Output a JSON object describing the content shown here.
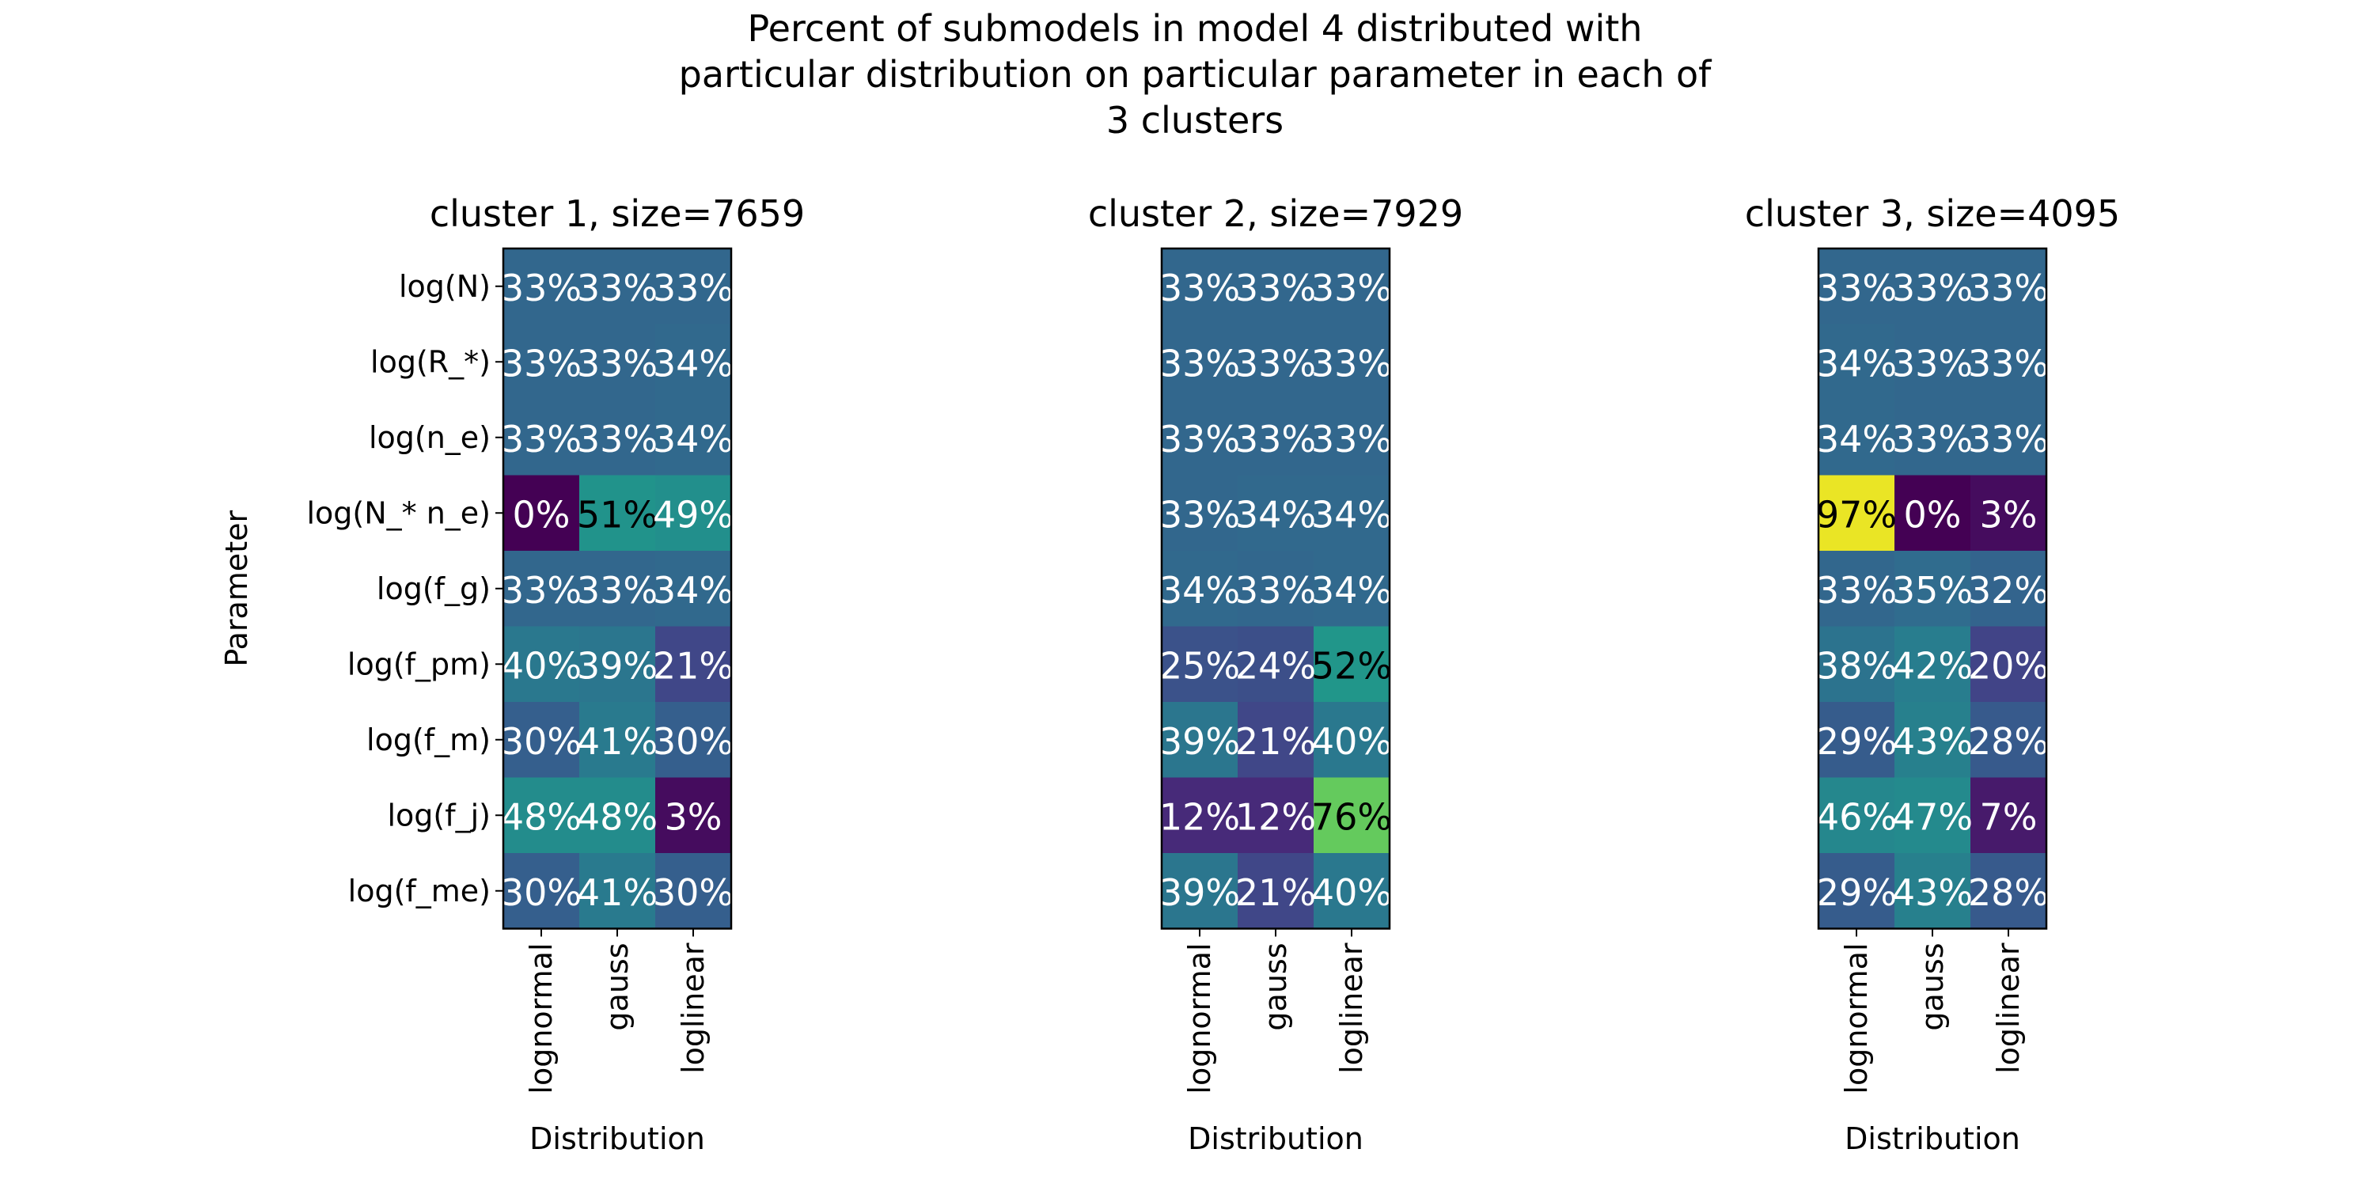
{
  "chart_data": {
    "type": "heatmap",
    "title_lines": [
      "Percent of submodels in model 4 distributed with",
      "particular distribution on particular parameter in each of",
      "3 clusters"
    ],
    "ylabel": "Parameter",
    "xlabel": "Distribution",
    "colormap": "viridis",
    "vmin": 0,
    "vmax": 100,
    "parameters": [
      "log(N)",
      "log(R_*)",
      "log(n_e)",
      "log(N_* n_e)",
      "log(f_g)",
      "log(f_pm)",
      "log(f_m)",
      "log(f_j)",
      "log(f_me)"
    ],
    "distributions": [
      "lognormal",
      "gauss",
      "loglinear"
    ],
    "panels": [
      {
        "title": "cluster 1, size=7659",
        "values": [
          [
            33,
            33,
            33
          ],
          [
            33,
            33,
            34
          ],
          [
            33,
            33,
            34
          ],
          [
            0,
            51,
            49
          ],
          [
            33,
            33,
            34
          ],
          [
            40,
            39,
            21
          ],
          [
            30,
            41,
            30
          ],
          [
            48,
            48,
            3
          ],
          [
            30,
            41,
            30
          ]
        ]
      },
      {
        "title": "cluster 2, size=7929",
        "values": [
          [
            33,
            33,
            33
          ],
          [
            33,
            33,
            33
          ],
          [
            33,
            33,
            33
          ],
          [
            33,
            34,
            34
          ],
          [
            34,
            33,
            34
          ],
          [
            25,
            24,
            52
          ],
          [
            39,
            21,
            40
          ],
          [
            12,
            12,
            76
          ],
          [
            39,
            21,
            40
          ]
        ]
      },
      {
        "title": "cluster 3, size=4095",
        "values": [
          [
            33,
            33,
            33
          ],
          [
            34,
            33,
            33
          ],
          [
            34,
            33,
            33
          ],
          [
            97,
            0,
            3
          ],
          [
            33,
            35,
            32
          ],
          [
            38,
            42,
            20
          ],
          [
            29,
            43,
            28
          ],
          [
            46,
            47,
            7
          ],
          [
            29,
            43,
            28
          ]
        ]
      }
    ],
    "value_suffix": "%"
  }
}
